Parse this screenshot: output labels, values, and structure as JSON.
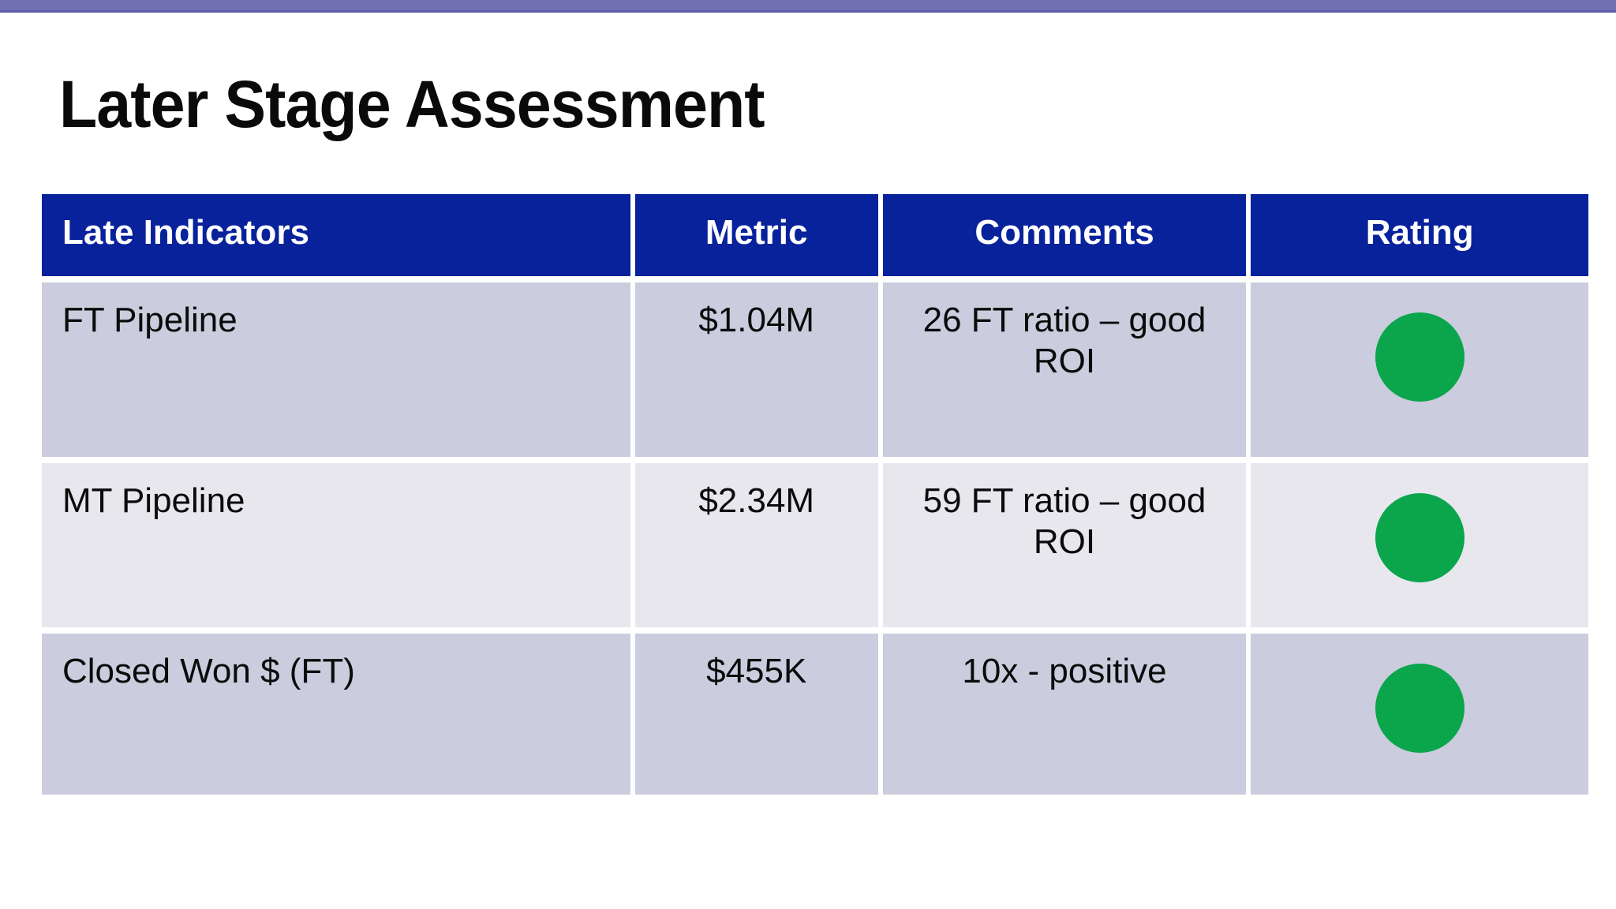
{
  "slide": {
    "title": "Later Stage Assessment",
    "top_bar_color": "#7270B5"
  },
  "table": {
    "header_bg_color": "#08229B",
    "row_bg_colors": [
      "#CBCCDD",
      "#E7E7ED",
      "#CBCCDD"
    ],
    "rating_green_color": "#0BA64C",
    "columns": [
      {
        "label": "Late Indicators"
      },
      {
        "label": "Metric"
      },
      {
        "label": "Comments"
      },
      {
        "label": "Rating"
      }
    ],
    "rows": [
      {
        "indicator": "FT Pipeline",
        "metric": "$1.04M",
        "comment": "26 FT ratio – good ROI",
        "rating": "green"
      },
      {
        "indicator": "MT Pipeline",
        "metric": "$2.34M",
        "comment": "59 FT ratio – good ROI",
        "rating": "green"
      },
      {
        "indicator": "Closed Won $ (FT)",
        "metric": "$455K",
        "comment": "10x - positive",
        "rating": "green"
      }
    ]
  }
}
